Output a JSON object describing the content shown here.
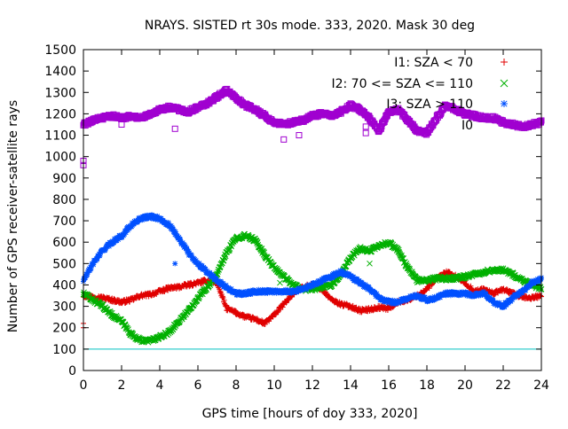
{
  "chart_data": {
    "type": "scatter",
    "title": "NRAYS. SISTED rt 30s mode. 333, 2020. Mask 30 deg",
    "xlabel": "GPS time [hours of doy 333, 2020]",
    "ylabel": "Number of GPS receiver-satellite rays",
    "xlim": [
      0,
      24
    ],
    "ylim": [
      0,
      1500
    ],
    "xticks": [
      0,
      2,
      4,
      6,
      8,
      10,
      12,
      14,
      16,
      18,
      20,
      22,
      24
    ],
    "yticks": [
      0,
      100,
      200,
      300,
      400,
      500,
      600,
      700,
      800,
      900,
      1000,
      1100,
      1200,
      1300,
      1400,
      1500
    ],
    "grid": false,
    "legend_position": "top-right",
    "reference_line": {
      "y": 100,
      "color": "#00c0c0"
    },
    "series": [
      {
        "name": "I1: SZA < 70",
        "marker": "+",
        "color": "#e00000",
        "points": [
          [
            0,
            350
          ],
          [
            0.5,
            345
          ],
          [
            1,
            340
          ],
          [
            1.5,
            330
          ],
          [
            2,
            320
          ],
          [
            2.5,
            330
          ],
          [
            3,
            350
          ],
          [
            3.5,
            355
          ],
          [
            4,
            370
          ],
          [
            4.5,
            385
          ],
          [
            5,
            390
          ],
          [
            5.5,
            400
          ],
          [
            6,
            410
          ],
          [
            6.5,
            420
          ],
          [
            7,
            410
          ],
          [
            7.5,
            290
          ],
          [
            8,
            270
          ],
          [
            8.5,
            250
          ],
          [
            9,
            240
          ],
          [
            9.5,
            220
          ],
          [
            10,
            260
          ],
          [
            10.5,
            310
          ],
          [
            11,
            360
          ],
          [
            11.5,
            390
          ],
          [
            12,
            400
          ],
          [
            12.5,
            380
          ],
          [
            13,
            330
          ],
          [
            13.5,
            310
          ],
          [
            14,
            300
          ],
          [
            14.5,
            280
          ],
          [
            15,
            285
          ],
          [
            15.5,
            295
          ],
          [
            16,
            290
          ],
          [
            16.5,
            320
          ],
          [
            17,
            330
          ],
          [
            17.5,
            350
          ],
          [
            18,
            380
          ],
          [
            18.5,
            430
          ],
          [
            19,
            460
          ],
          [
            19.5,
            440
          ],
          [
            20,
            410
          ],
          [
            20.5,
            370
          ],
          [
            21,
            380
          ],
          [
            21.5,
            360
          ],
          [
            22,
            380
          ],
          [
            22.5,
            360
          ],
          [
            23,
            340
          ],
          [
            23.5,
            340
          ],
          [
            24,
            350
          ]
        ],
        "outliers": [
          [
            0,
            200
          ],
          [
            0,
            220
          ]
        ]
      },
      {
        "name": "I2: 70 <= SZA <= 110",
        "marker": "x",
        "color": "#00b000",
        "points": [
          [
            0,
            360
          ],
          [
            0.5,
            330
          ],
          [
            1,
            300
          ],
          [
            1.5,
            260
          ],
          [
            2,
            230
          ],
          [
            2.5,
            170
          ],
          [
            3,
            140
          ],
          [
            3.5,
            140
          ],
          [
            4,
            155
          ],
          [
            4.5,
            180
          ],
          [
            5,
            230
          ],
          [
            5.5,
            280
          ],
          [
            6,
            340
          ],
          [
            6.5,
            390
          ],
          [
            7,
            450
          ],
          [
            7.5,
            550
          ],
          [
            8,
            620
          ],
          [
            8.5,
            630
          ],
          [
            9,
            610
          ],
          [
            9.5,
            540
          ],
          [
            10,
            480
          ],
          [
            10.5,
            440
          ],
          [
            11,
            400
          ],
          [
            11.5,
            380
          ],
          [
            12,
            380
          ],
          [
            12.5,
            390
          ],
          [
            13,
            400
          ],
          [
            13.5,
            450
          ],
          [
            14,
            530
          ],
          [
            14.5,
            570
          ],
          [
            15,
            560
          ],
          [
            15.5,
            580
          ],
          [
            16,
            600
          ],
          [
            16.5,
            560
          ],
          [
            17,
            480
          ],
          [
            17.5,
            420
          ],
          [
            18,
            420
          ],
          [
            18.5,
            430
          ],
          [
            19,
            430
          ],
          [
            19.5,
            430
          ],
          [
            20,
            440
          ],
          [
            20.5,
            450
          ],
          [
            21,
            460
          ],
          [
            21.5,
            470
          ],
          [
            22,
            470
          ],
          [
            22.5,
            450
          ],
          [
            23,
            420
          ],
          [
            23.5,
            400
          ],
          [
            24,
            380
          ]
        ],
        "outliers": [
          [
            10.3,
            410
          ],
          [
            15,
            500
          ]
        ]
      },
      {
        "name": "I3: SZA > 110",
        "marker": "*",
        "color": "#0050ff",
        "points": [
          [
            0,
            420
          ],
          [
            0.5,
            500
          ],
          [
            1,
            560
          ],
          [
            1.5,
            600
          ],
          [
            2,
            630
          ],
          [
            2.5,
            680
          ],
          [
            3,
            710
          ],
          [
            3.5,
            720
          ],
          [
            4,
            710
          ],
          [
            4.5,
            680
          ],
          [
            5,
            620
          ],
          [
            5.5,
            550
          ],
          [
            6,
            500
          ],
          [
            6.5,
            460
          ],
          [
            7,
            420
          ],
          [
            7.5,
            390
          ],
          [
            8,
            360
          ],
          [
            8.5,
            360
          ],
          [
            9,
            370
          ],
          [
            9.5,
            370
          ],
          [
            10,
            370
          ],
          [
            10.5,
            370
          ],
          [
            11,
            370
          ],
          [
            11.5,
            380
          ],
          [
            12,
            400
          ],
          [
            12.5,
            420
          ],
          [
            13,
            440
          ],
          [
            13.5,
            460
          ],
          [
            14,
            440
          ],
          [
            14.5,
            410
          ],
          [
            15,
            380
          ],
          [
            15.5,
            340
          ],
          [
            16,
            320
          ],
          [
            16.5,
            320
          ],
          [
            17,
            340
          ],
          [
            17.5,
            350
          ],
          [
            18,
            330
          ],
          [
            18.5,
            340
          ],
          [
            19,
            360
          ],
          [
            19.5,
            360
          ],
          [
            20,
            360
          ],
          [
            20.5,
            350
          ],
          [
            21,
            360
          ],
          [
            21.5,
            320
          ],
          [
            22,
            300
          ],
          [
            22.5,
            340
          ],
          [
            23,
            370
          ],
          [
            23.5,
            410
          ],
          [
            24,
            430
          ]
        ],
        "outliers": [
          [
            4.8,
            500
          ]
        ]
      },
      {
        "name": "I0",
        "marker": "square",
        "color": "#a000d0",
        "points": [
          [
            0,
            1150
          ],
          [
            0.5,
            1170
          ],
          [
            1,
            1180
          ],
          [
            1.5,
            1190
          ],
          [
            2,
            1180
          ],
          [
            2.5,
            1190
          ],
          [
            3,
            1180
          ],
          [
            3.5,
            1200
          ],
          [
            4,
            1220
          ],
          [
            4.5,
            1230
          ],
          [
            5,
            1220
          ],
          [
            5.5,
            1210
          ],
          [
            6,
            1230
          ],
          [
            6.5,
            1250
          ],
          [
            7,
            1280
          ],
          [
            7.5,
            1310
          ],
          [
            8,
            1270
          ],
          [
            8.5,
            1240
          ],
          [
            9,
            1220
          ],
          [
            9.5,
            1190
          ],
          [
            10,
            1160
          ],
          [
            10.5,
            1150
          ],
          [
            11,
            1160
          ],
          [
            11.5,
            1170
          ],
          [
            12,
            1190
          ],
          [
            12.5,
            1200
          ],
          [
            13,
            1190
          ],
          [
            13.5,
            1210
          ],
          [
            14,
            1240
          ],
          [
            14.5,
            1220
          ],
          [
            15,
            1180
          ],
          [
            15.5,
            1120
          ],
          [
            16,
            1210
          ],
          [
            16.5,
            1220
          ],
          [
            17,
            1170
          ],
          [
            17.5,
            1120
          ],
          [
            18,
            1110
          ],
          [
            18.5,
            1180
          ],
          [
            19,
            1240
          ],
          [
            19.5,
            1220
          ],
          [
            20,
            1200
          ],
          [
            20.5,
            1190
          ],
          [
            21,
            1180
          ],
          [
            21.5,
            1180
          ],
          [
            22,
            1160
          ],
          [
            22.5,
            1150
          ],
          [
            23,
            1140
          ],
          [
            23.5,
            1150
          ],
          [
            24,
            1160
          ]
        ],
        "outliers": [
          [
            0,
            980
          ],
          [
            0,
            960
          ],
          [
            2,
            1150
          ],
          [
            4.8,
            1130
          ],
          [
            10.5,
            1080
          ],
          [
            11.3,
            1100
          ],
          [
            14.8,
            1140
          ],
          [
            14.8,
            1110
          ]
        ]
      }
    ]
  }
}
